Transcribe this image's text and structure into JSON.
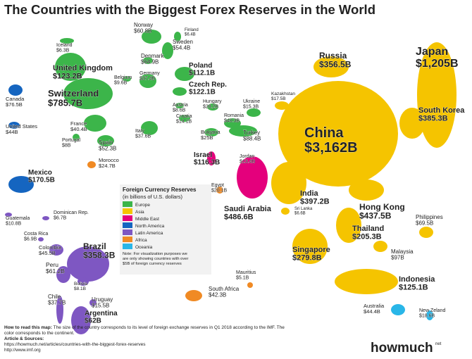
{
  "title": "The Countries with the Biggest Forex Reserves in the World",
  "legend": {
    "title": "Foreign Currency Reserves",
    "subtitle": "(in billions of U.S. dollars)",
    "items": [
      {
        "name": "Europe",
        "color": "#3cb54a"
      },
      {
        "name": "Asia",
        "color": "#f5c400"
      },
      {
        "name": "Middle East",
        "color": "#e4007c"
      },
      {
        "name": "North America",
        "color": "#1565c0"
      },
      {
        "name": "Latin America",
        "color": "#7e57c2"
      },
      {
        "name": "Africa",
        "color": "#f08a24"
      },
      {
        "name": "Oceania",
        "color": "#29b6e8"
      }
    ],
    "note": "Note: For visualization purposes we are only showing countries with over $5B of foreign currency reserves"
  },
  "countries": [
    {
      "name": "Norway",
      "value": "$60.8B",
      "region": 0
    },
    {
      "name": "Finland",
      "value": "$6.4B",
      "region": 0
    },
    {
      "name": "Iceland",
      "value": "$6.3B",
      "region": 0
    },
    {
      "name": "Sweden",
      "value": "$54.4B",
      "region": 0
    },
    {
      "name": "Denmark",
      "value": "$64.9B",
      "region": 0
    },
    {
      "name": "Poland",
      "value": "$112.1B",
      "region": 0
    },
    {
      "name": "United Kingdom",
      "value": "$123.2B",
      "region": 0
    },
    {
      "name": "Belgium",
      "value": "$9.6B",
      "region": 0
    },
    {
      "name": "Germany",
      "value": "$37.4B",
      "region": 0
    },
    {
      "name": "Czech Rep.",
      "value": "$122.1B",
      "region": 0
    },
    {
      "name": "Canada",
      "value": "$76.5B",
      "region": 3
    },
    {
      "name": "Switzerland",
      "value": "$785.7B",
      "region": 0
    },
    {
      "name": "Hungary",
      "value": "$28.2B",
      "region": 0
    },
    {
      "name": "Austria",
      "value": "$8.6B",
      "region": 0
    },
    {
      "name": "Ukraine",
      "value": "$15.3B",
      "region": 0
    },
    {
      "name": "Kazakhstan",
      "value": "$17.5B",
      "region": 1
    },
    {
      "name": "Croatia",
      "value": "$14.1B",
      "region": 0
    },
    {
      "name": "Romania",
      "value": "$40.3B",
      "region": 0
    },
    {
      "name": "France",
      "value": "$40.4B",
      "region": 0
    },
    {
      "name": "Italy",
      "value": "$37.6B",
      "region": 0
    },
    {
      "name": "Bulgaria",
      "value": "$25B",
      "region": 0
    },
    {
      "name": "Turkey",
      "value": "$88.4B",
      "region": 0
    },
    {
      "name": "United States",
      "value": "$44B",
      "region": 3
    },
    {
      "name": "Portugal",
      "value": "$8B",
      "region": 0
    },
    {
      "name": "Spain",
      "value": "$52.3B",
      "region": 0
    },
    {
      "name": "Morocco",
      "value": "$24.7B",
      "region": 5
    },
    {
      "name": "Israel",
      "value": "$116.3B",
      "region": 2
    },
    {
      "name": "Jordan",
      "value": "$13.4B",
      "region": 2
    },
    {
      "name": "Mexico",
      "value": "$170.5B",
      "region": 3
    },
    {
      "name": "Egypt",
      "value": "$20.1B",
      "region": 5
    },
    {
      "name": "Saudi Arabia",
      "value": "$486.6B",
      "region": 2
    },
    {
      "name": "India",
      "value": "$397.2B",
      "region": 1
    },
    {
      "name": "Sri Lanka",
      "value": "$6.6B",
      "region": 1
    },
    {
      "name": "Russia",
      "value": "$356.5B",
      "region": 1
    },
    {
      "name": "Japan",
      "value": "$1,205B",
      "region": 1
    },
    {
      "name": "China",
      "value": "$3,162B",
      "region": 1
    },
    {
      "name": "South Korea",
      "value": "$385.3B",
      "region": 1
    },
    {
      "name": "Hong Kong",
      "value": "$437.5B",
      "region": 1
    },
    {
      "name": "Philippines",
      "value": "$69.5B",
      "region": 1
    },
    {
      "name": "Thailand",
      "value": "$205.3B",
      "region": 1
    },
    {
      "name": "Malaysia",
      "value": "$97B",
      "region": 1
    },
    {
      "name": "Singapore",
      "value": "$279.8B",
      "region": 1
    },
    {
      "name": "Indonesia",
      "value": "$125.1B",
      "region": 1
    },
    {
      "name": "Australia",
      "value": "$44.4B",
      "region": 6
    },
    {
      "name": "New Zeland",
      "value": "$18.6B",
      "region": 6
    },
    {
      "name": "Mauritius",
      "value": "$5.1B",
      "region": 5
    },
    {
      "name": "South Africa",
      "value": "$42.3B",
      "region": 5
    },
    {
      "name": "Guatemala",
      "value": "$10.8B",
      "region": 4
    },
    {
      "name": "Dominican Rep.",
      "value": "$6.7B",
      "region": 4
    },
    {
      "name": "Costa Rica",
      "value": "$6.9B",
      "region": 4
    },
    {
      "name": "Colombia",
      "value": "$45.5B",
      "region": 4
    },
    {
      "name": "Brazil",
      "value": "$358.3B",
      "region": 4
    },
    {
      "name": "Peru",
      "value": "$61.2B",
      "region": 4
    },
    {
      "name": "Bolivia",
      "value": "$8.1B",
      "region": 4
    },
    {
      "name": "Chile",
      "value": "$37.7B",
      "region": 4
    },
    {
      "name": "Uruguay",
      "value": "$15.5B",
      "region": 4
    },
    {
      "name": "Argentina",
      "value": "$62B",
      "region": 4
    }
  ],
  "footer": {
    "how_to_label": "How to read this map:",
    "how_to_text": "The size of the country corresponds to its level of foreign exchange reserves in Q1 2018 according to the IMF. The color corresponds to the continent.",
    "sources_label": "Article & Sources:",
    "sources": [
      "https://howmuch.net/articles/countries-with-the-biggest-forex-reserves",
      "http://www.imf.org"
    ]
  },
  "logo": {
    "main": "howmuch",
    "suffix": "net"
  }
}
